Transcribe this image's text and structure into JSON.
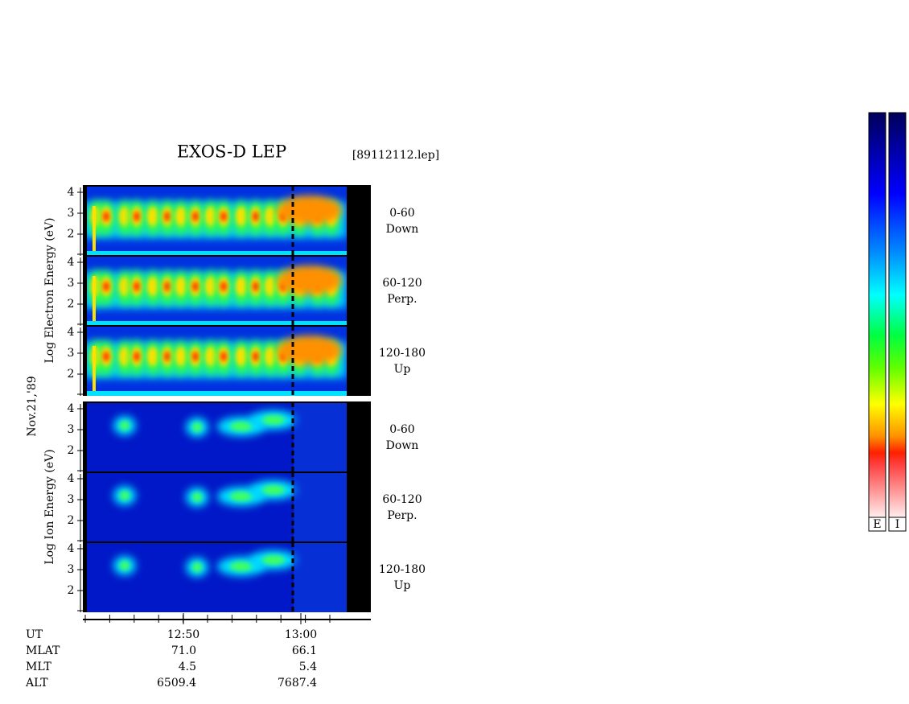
{
  "header": {
    "title": "EXOS-D LEP",
    "file": "[89112112.lep]"
  },
  "date": "Nov.21,'89",
  "groups": [
    {
      "label": "Log  Electron  Energy (eV)",
      "panels": [
        {
          "range": "0-60",
          "direction": "Down"
        },
        {
          "range": "60-120",
          "direction": "Perp."
        },
        {
          "range": "120-180",
          "direction": "Up"
        }
      ]
    },
    {
      "label": "Log  Ion  Energy (eV)",
      "panels": [
        {
          "range": "0-60",
          "direction": "Down"
        },
        {
          "range": "60-120",
          "direction": "Perp."
        },
        {
          "range": "120-180",
          "direction": "Up"
        }
      ]
    }
  ],
  "yticks": [
    2,
    3,
    4
  ],
  "xticks": [
    "12:50",
    "13:00"
  ],
  "ephemeris": [
    {
      "label": "UT"
    },
    {
      "label": "MLAT",
      "values": [
        "71.0",
        "66.1"
      ]
    },
    {
      "label": "MLT",
      "values": [
        "4.5",
        "5.4"
      ]
    },
    {
      "label": "ALT",
      "values": [
        "6509.4",
        "7687.4"
      ]
    }
  ],
  "colorbar": {
    "labels": [
      "E",
      "I"
    ]
  }
}
